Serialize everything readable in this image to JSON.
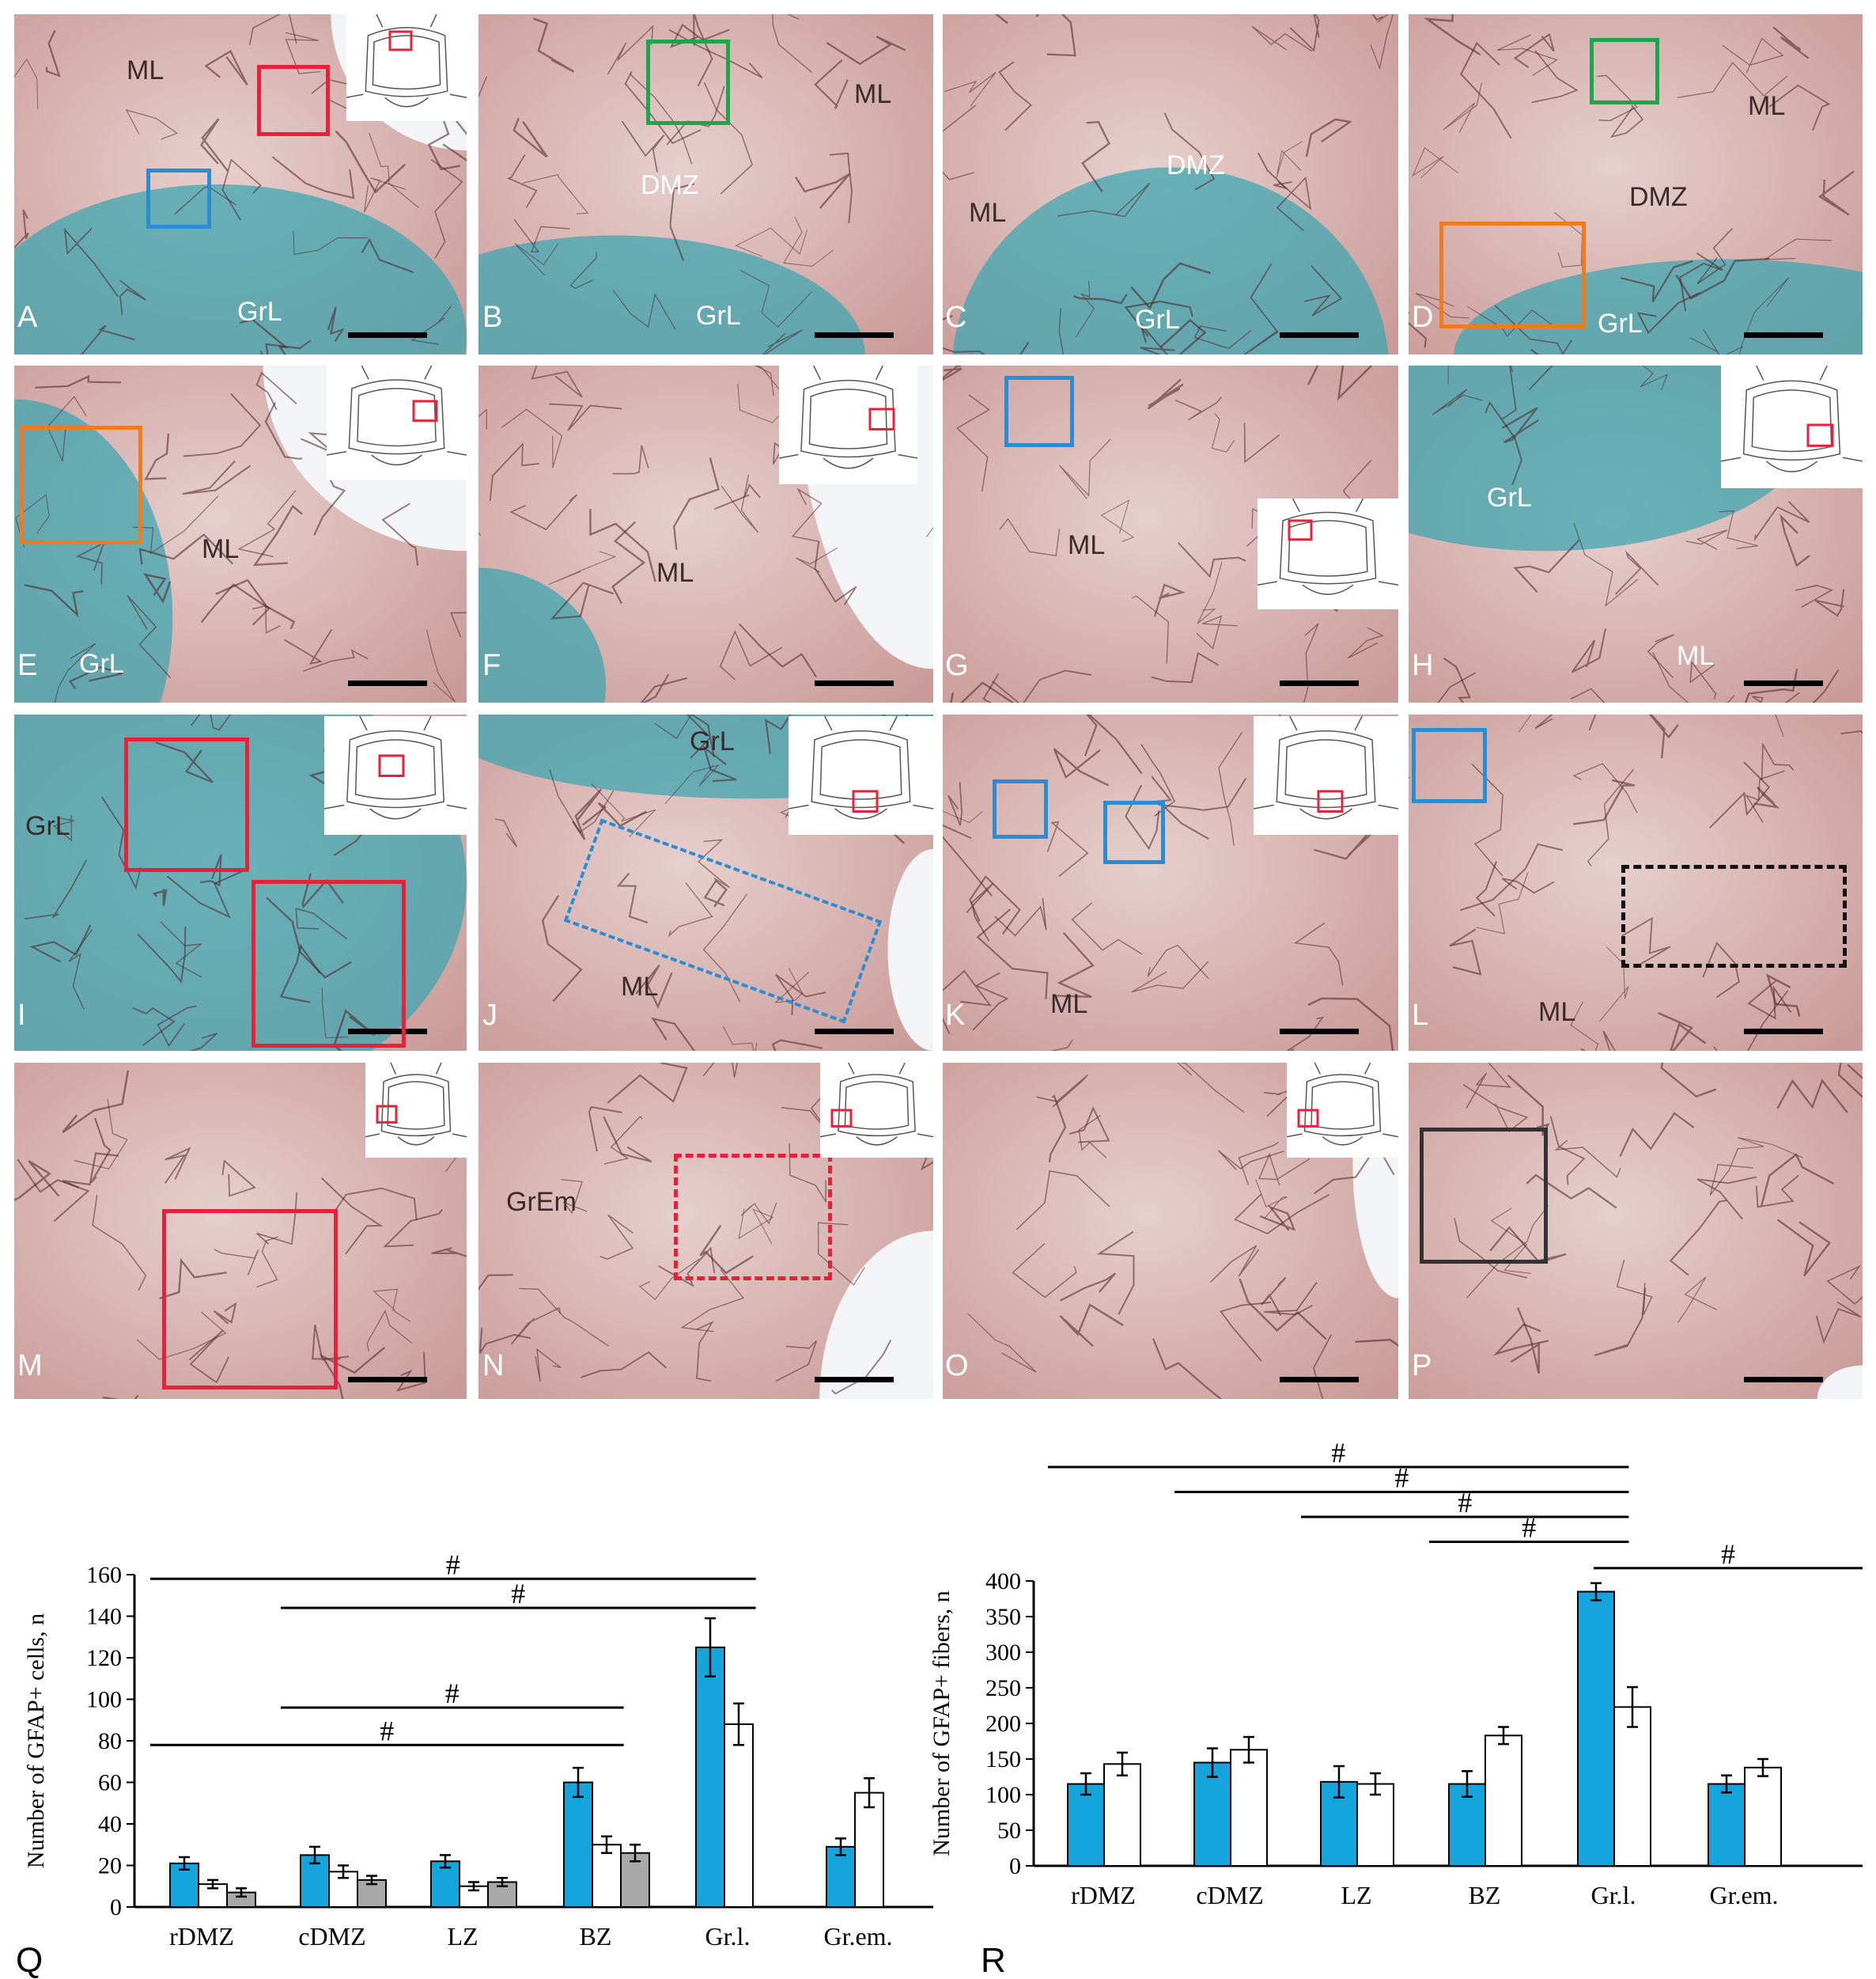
{
  "figure": {
    "panel_labels": [
      "A",
      "B",
      "C",
      "D",
      "E",
      "F",
      "G",
      "H",
      "I",
      "J",
      "K",
      "L",
      "M",
      "N",
      "O",
      "P",
      "Q",
      "R"
    ],
    "region_labels": {
      "A": [
        "ML",
        "GrL"
      ],
      "B": [
        "ML",
        "DMZ",
        "GrL"
      ],
      "C": [
        "DMZ",
        "ML",
        "GrL"
      ],
      "D": [
        "ML",
        "DMZ",
        "GrL"
      ],
      "E": [
        "ML",
        "GrL"
      ],
      "F": [
        "ML"
      ],
      "G": [
        "ML"
      ],
      "H": [
        "GrL",
        "ML"
      ],
      "I": [
        "GrL"
      ],
      "J": [
        "GrL",
        "ML"
      ],
      "K": [
        "ML"
      ],
      "L": [
        "ML"
      ],
      "N": [
        "GrEm"
      ]
    },
    "colors": {
      "tissue": "#c99a97",
      "tissue_light": "#e6cfcd",
      "granular": "#3fa6b0",
      "fiber": "#4a1f22",
      "red_box": "#e8203a",
      "blue_box": "#2a8cd2",
      "green_box": "#1aa64b",
      "orange_box": "#f07a1e",
      "arrow_red": "#d8281e",
      "arrow_green": "#1e9e3c",
      "arrow_blue": "#2aa4e0",
      "arrow_yellow": "#f2d516",
      "arrow_magenta": "#d0308a",
      "bar_blue": "#16a4dc",
      "bar_white": "#ffffff",
      "bar_gray": "#a8a8a8"
    }
  },
  "chart_data": [
    {
      "type": "bar",
      "panel": "Q",
      "categories": [
        "rDMZ",
        "cDMZ",
        "LZ",
        "BZ",
        "Gr.l.",
        "Gr.em."
      ],
      "ylabel": "Number of GFAP+ cells, n",
      "ylim": [
        0,
        160
      ],
      "yticks": [
        0,
        20,
        40,
        60,
        80,
        100,
        120,
        140,
        160
      ],
      "grid": false,
      "series": [
        {
          "color": "#16a4dc",
          "values": [
            21,
            25,
            22,
            60,
            125,
            29
          ],
          "errors": [
            3,
            4,
            3,
            7,
            14,
            4
          ]
        },
        {
          "color": "#ffffff",
          "values": [
            11,
            17,
            10,
            30,
            88,
            55
          ],
          "errors": [
            2,
            3,
            2,
            4,
            10,
            7
          ]
        },
        {
          "color": "#a8a8a8",
          "values": [
            7,
            13,
            12,
            26,
            null,
            null
          ],
          "errors": [
            2,
            2,
            2,
            4,
            null,
            null
          ]
        }
      ],
      "significance": [
        {
          "label": "#",
          "from": "rDMZ",
          "to": "Gr.l.",
          "y": 158
        },
        {
          "label": "#",
          "from": "cDMZ",
          "to": "Gr.l.",
          "y": 144
        },
        {
          "label": "#",
          "from": "cDMZ",
          "to": "BZ",
          "y": 96
        },
        {
          "label": "#",
          "from": "rDMZ",
          "to": "BZ",
          "y": 78
        }
      ]
    },
    {
      "type": "bar",
      "panel": "R",
      "categories": [
        "rDMZ",
        "cDMZ",
        "LZ",
        "BZ",
        "Gr.l.",
        "Gr.em."
      ],
      "ylabel": "Number of GFAP+ fibers, n",
      "ylim": [
        0,
        400
      ],
      "yticks": [
        0,
        50,
        100,
        150,
        200,
        250,
        300,
        350,
        400
      ],
      "grid": false,
      "series": [
        {
          "color": "#16a4dc",
          "values": [
            115,
            145,
            118,
            115,
            385,
            115
          ],
          "errors": [
            15,
            20,
            22,
            18,
            12,
            12
          ]
        },
        {
          "color": "#ffffff",
          "values": [
            143,
            163,
            115,
            183,
            223,
            138
          ],
          "errors": [
            16,
            18,
            15,
            12,
            28,
            12
          ]
        }
      ],
      "significance": [
        {
          "label": "#",
          "from": "rDMZ",
          "to": "Gr.l.",
          "y": 560
        },
        {
          "label": "#",
          "from": "cDMZ",
          "to": "Gr.l.",
          "y": 525
        },
        {
          "label": "#",
          "from": "LZ",
          "to": "Gr.l.",
          "y": 490
        },
        {
          "label": "#",
          "from": "BZ",
          "to": "Gr.l.",
          "y": 455
        },
        {
          "label": "#",
          "from": "Gr.l.",
          "to": "Gr.em.",
          "y": 418
        }
      ]
    }
  ]
}
